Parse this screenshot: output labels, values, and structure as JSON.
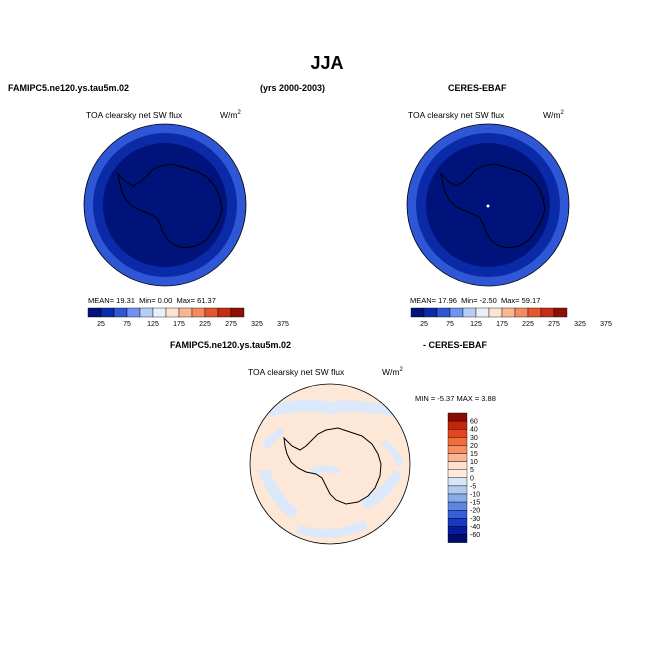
{
  "title": "JJA",
  "top_left_case": "FAMIPC5.ne120.ys.tau5m.02",
  "years": "(yrs 2000-2003)",
  "top_right_case": "CERES-EBAF",
  "diff_left_case": "FAMIPC5.ne120.ys.tau5m.02",
  "diff_right_case": "- CERES-EBAF",
  "panels": [
    {
      "variable": "TOA clearsky net SW flux",
      "units": "W/m",
      "units_sup": "2",
      "stats": {
        "mean_label": "MEAN=",
        "mean": "19.31",
        "min_label": "Min=",
        "min": "0.00",
        "max_label": "Max=",
        "max": "61.37"
      }
    },
    {
      "variable": "TOA clearsky net SW flux",
      "units": "W/m",
      "units_sup": "2",
      "stats": {
        "mean_label": "MEAN=",
        "mean": "17.96",
        "min_label": "Min=",
        "min": "-2.50",
        "max_label": "Max=",
        "max": "59.17"
      }
    }
  ],
  "colorbar": {
    "labels": [
      "25",
      "75",
      "125",
      "175",
      "225",
      "275",
      "325",
      "375"
    ],
    "colors": [
      "#00137a",
      "#0a2aa8",
      "#2f56d4",
      "#6f93ef",
      "#b6cdf5",
      "#e8f0fb",
      "#fde3d0",
      "#f9b693",
      "#f48a61",
      "#e5562e",
      "#c32d14",
      "#8f0e06"
    ]
  },
  "diff_panel": {
    "variable": "TOA clearsky net SW flux",
    "units": "W/m",
    "units_sup": "2",
    "stats": "MIN =  -5.37 MAX =    3.88",
    "colorbar_labels": [
      "60",
      "40",
      "30",
      "20",
      "15",
      "10",
      "5",
      "0",
      "-5",
      "-10",
      "-15",
      "-20",
      "-30",
      "-40",
      "-60"
    ],
    "colorbar_colors": [
      "#8b0b00",
      "#c4260a",
      "#e2461e",
      "#f16b3b",
      "#f78e62",
      "#fab593",
      "#fde3cf",
      "#fdebdd",
      "#d7e7f8",
      "#b1cbf0",
      "#8aabea",
      "#5d86e3",
      "#3660d8",
      "#1539c2",
      "#061c9c",
      "#000d6e"
    ]
  },
  "colors": {
    "outer_ring": "#2f56d4",
    "mid_ring": "#0a2aa8",
    "interior": "#00137a",
    "diff_background": "#fde8d8",
    "diff_negative": "#dbe9fa"
  }
}
